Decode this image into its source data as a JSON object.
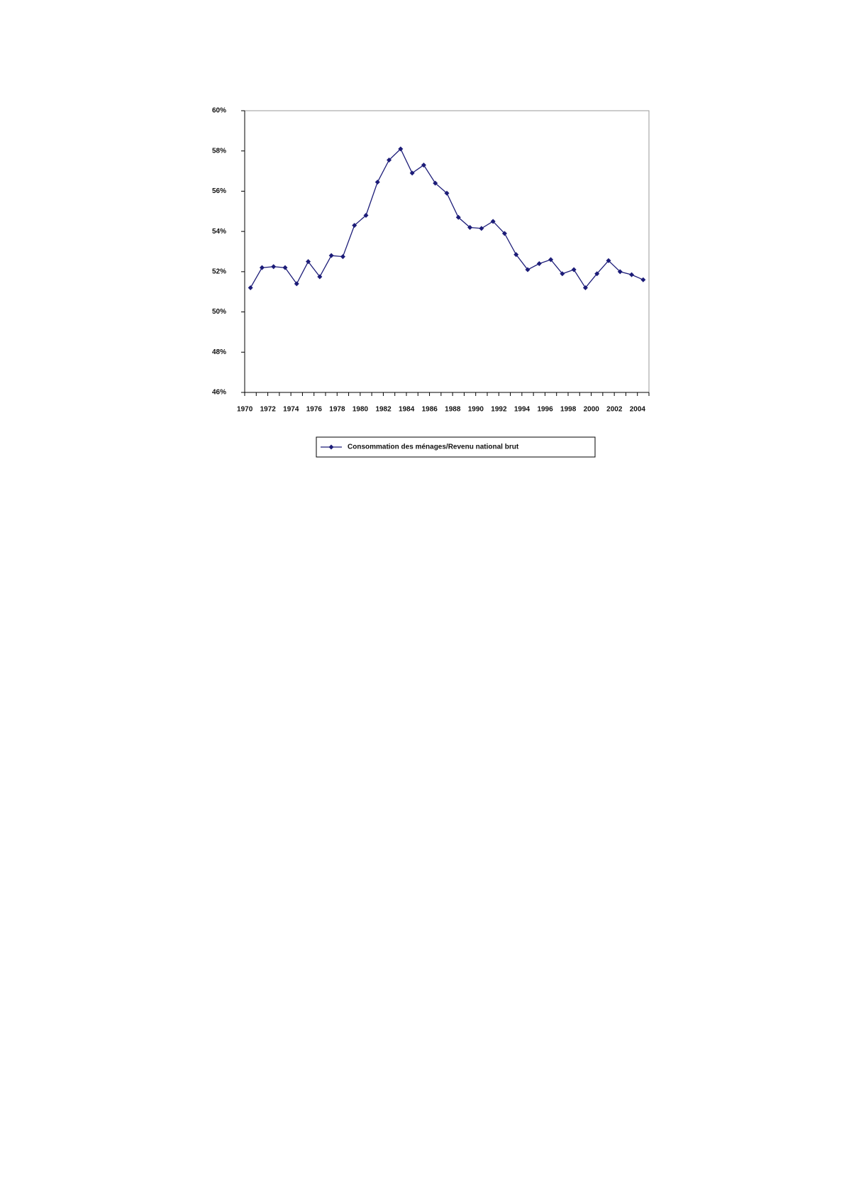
{
  "chart_data": {
    "type": "line",
    "categories": [
      "1970",
      null,
      "1972",
      null,
      "1974",
      null,
      "1976",
      null,
      "1978",
      null,
      "1980",
      null,
      "1982",
      null,
      "1984",
      null,
      "1986",
      null,
      "1988",
      null,
      "1990",
      null,
      "1992",
      null,
      "1994",
      null,
      "1996",
      null,
      "1998",
      null,
      "2000",
      null,
      "2002",
      null,
      "2004"
    ],
    "series": [
      {
        "name": "Consommation des ménages/Revenu national brut",
        "color": "#1c1c78",
        "values": [
          51.2,
          52.2,
          52.25,
          52.2,
          51.4,
          52.5,
          51.75,
          52.8,
          52.75,
          54.3,
          54.8,
          56.45,
          57.55,
          58.1,
          56.9,
          57.3,
          56.4,
          55.9,
          54.7,
          54.2,
          54.15,
          54.5,
          53.9,
          52.85,
          52.1,
          52.4,
          52.6,
          51.9,
          52.1,
          51.2,
          51.9,
          52.55,
          52.0,
          51.85,
          51.6
        ]
      }
    ],
    "ylim": [
      46,
      60
    ],
    "yticks": [
      {
        "value": 46,
        "label": "46%"
      },
      {
        "value": 48,
        "label": "48%"
      },
      {
        "value": 50,
        "label": "50%"
      },
      {
        "value": 52,
        "label": "52%"
      },
      {
        "value": 54,
        "label": "54%"
      },
      {
        "value": 56,
        "label": "56%"
      },
      {
        "value": 58,
        "label": "58%"
      },
      {
        "value": 60,
        "label": "60%"
      }
    ],
    "grid": false,
    "legend": "bottom"
  }
}
